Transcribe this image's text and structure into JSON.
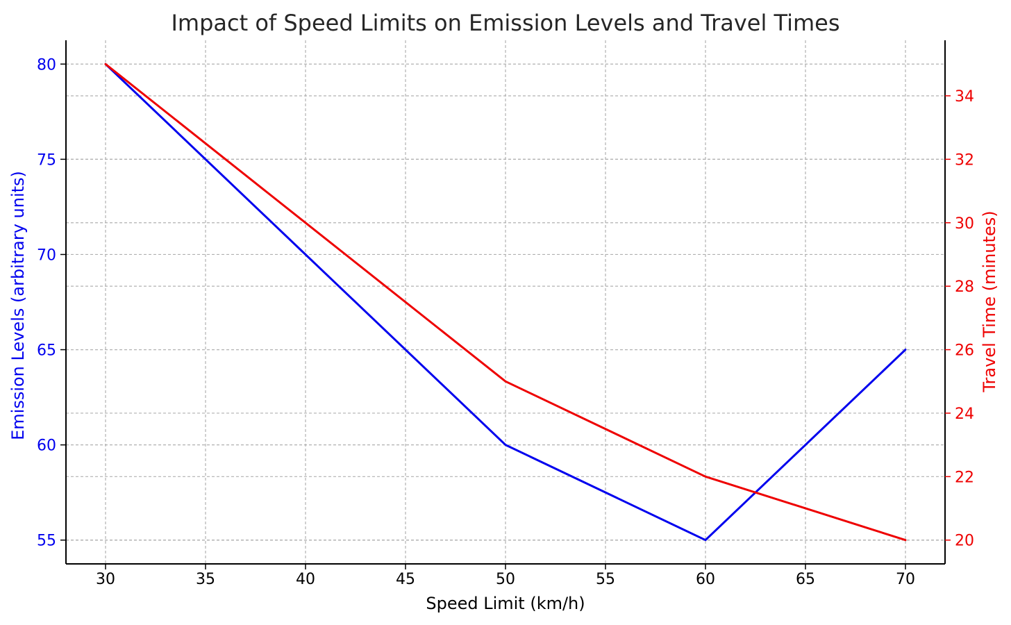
{
  "chart_data": {
    "type": "line",
    "title": "Impact of Speed Limits on Emission Levels and Travel Times",
    "xlabel": "Speed Limit (km/h)",
    "x": [
      30,
      40,
      50,
      60,
      70
    ],
    "xticks": [
      30,
      35,
      40,
      45,
      50,
      55,
      60,
      65,
      70
    ],
    "xlim": [
      28,
      72
    ],
    "grid": true,
    "grid_style": "dashed",
    "axes": {
      "left": {
        "label": "Emission Levels (arbitrary units)",
        "color": "#0000ee",
        "ylim": [
          53.75,
          81.25
        ],
        "ticks": [
          55,
          60,
          65,
          70,
          75,
          80
        ]
      },
      "right": {
        "label": "Travel Time (minutes)",
        "color": "#ee0000",
        "ylim": [
          19.25,
          35.75
        ],
        "ticks": [
          20,
          22,
          24,
          26,
          28,
          30,
          32,
          34
        ]
      }
    },
    "series": [
      {
        "axis": "left",
        "color": "#0000ee",
        "values": [
          80,
          70,
          60,
          55,
          65
        ]
      },
      {
        "axis": "right",
        "color": "#ee0000",
        "values": [
          35,
          30,
          25,
          22,
          20
        ]
      }
    ]
  }
}
